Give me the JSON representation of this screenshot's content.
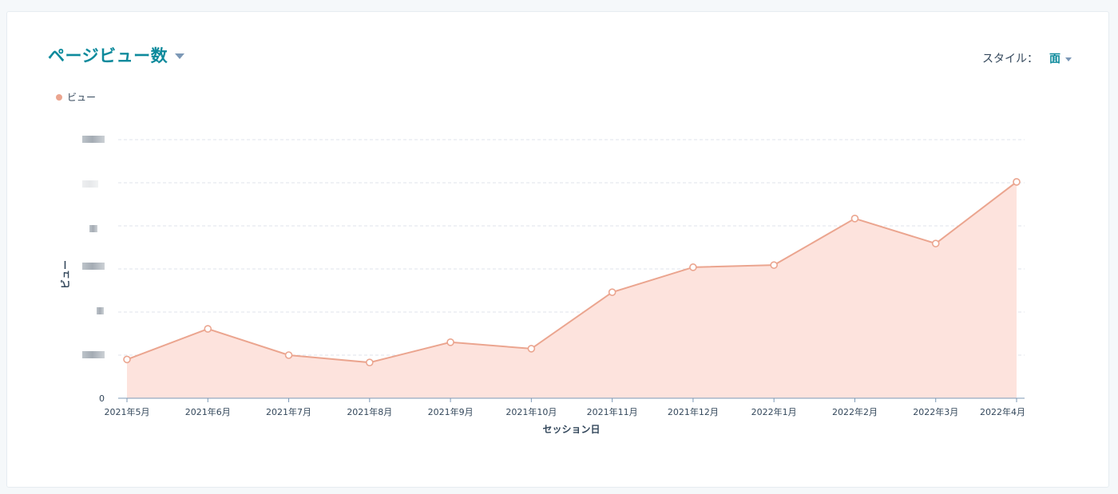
{
  "report": {
    "title": "ページビュー数",
    "style_label": "スタイル：",
    "style_value": "面"
  },
  "colors": {
    "accent": "#0d8a9c",
    "series_line": "#eba58f",
    "series_fill": "#fde3dd",
    "gridline": "#dfe3eb",
    "axis": "#7c98b6"
  },
  "chart_data": {
    "type": "area",
    "xlabel": "セッション日",
    "ylabel": "ビュー",
    "categories": [
      "2021年5月",
      "2021年6月",
      "2021年7月",
      "2021年8月",
      "2021年9月",
      "2021年10月",
      "2021年11月",
      "2021年12月",
      "2022年1月",
      "2022年2月",
      "2022年3月",
      "2022年4月"
    ],
    "series": [
      {
        "name": "ビュー",
        "values": [
          0.9,
          1.61,
          1.0,
          0.83,
          1.3,
          1.15,
          2.46,
          3.04,
          3.09,
          4.17,
          3.59,
          5.02
        ]
      }
    ],
    "ylim": [
      0,
      6
    ],
    "y_tick_count": 6,
    "visible_y_tick_labels": [
      "0"
    ],
    "grid": true,
    "legend": "top-left"
  }
}
